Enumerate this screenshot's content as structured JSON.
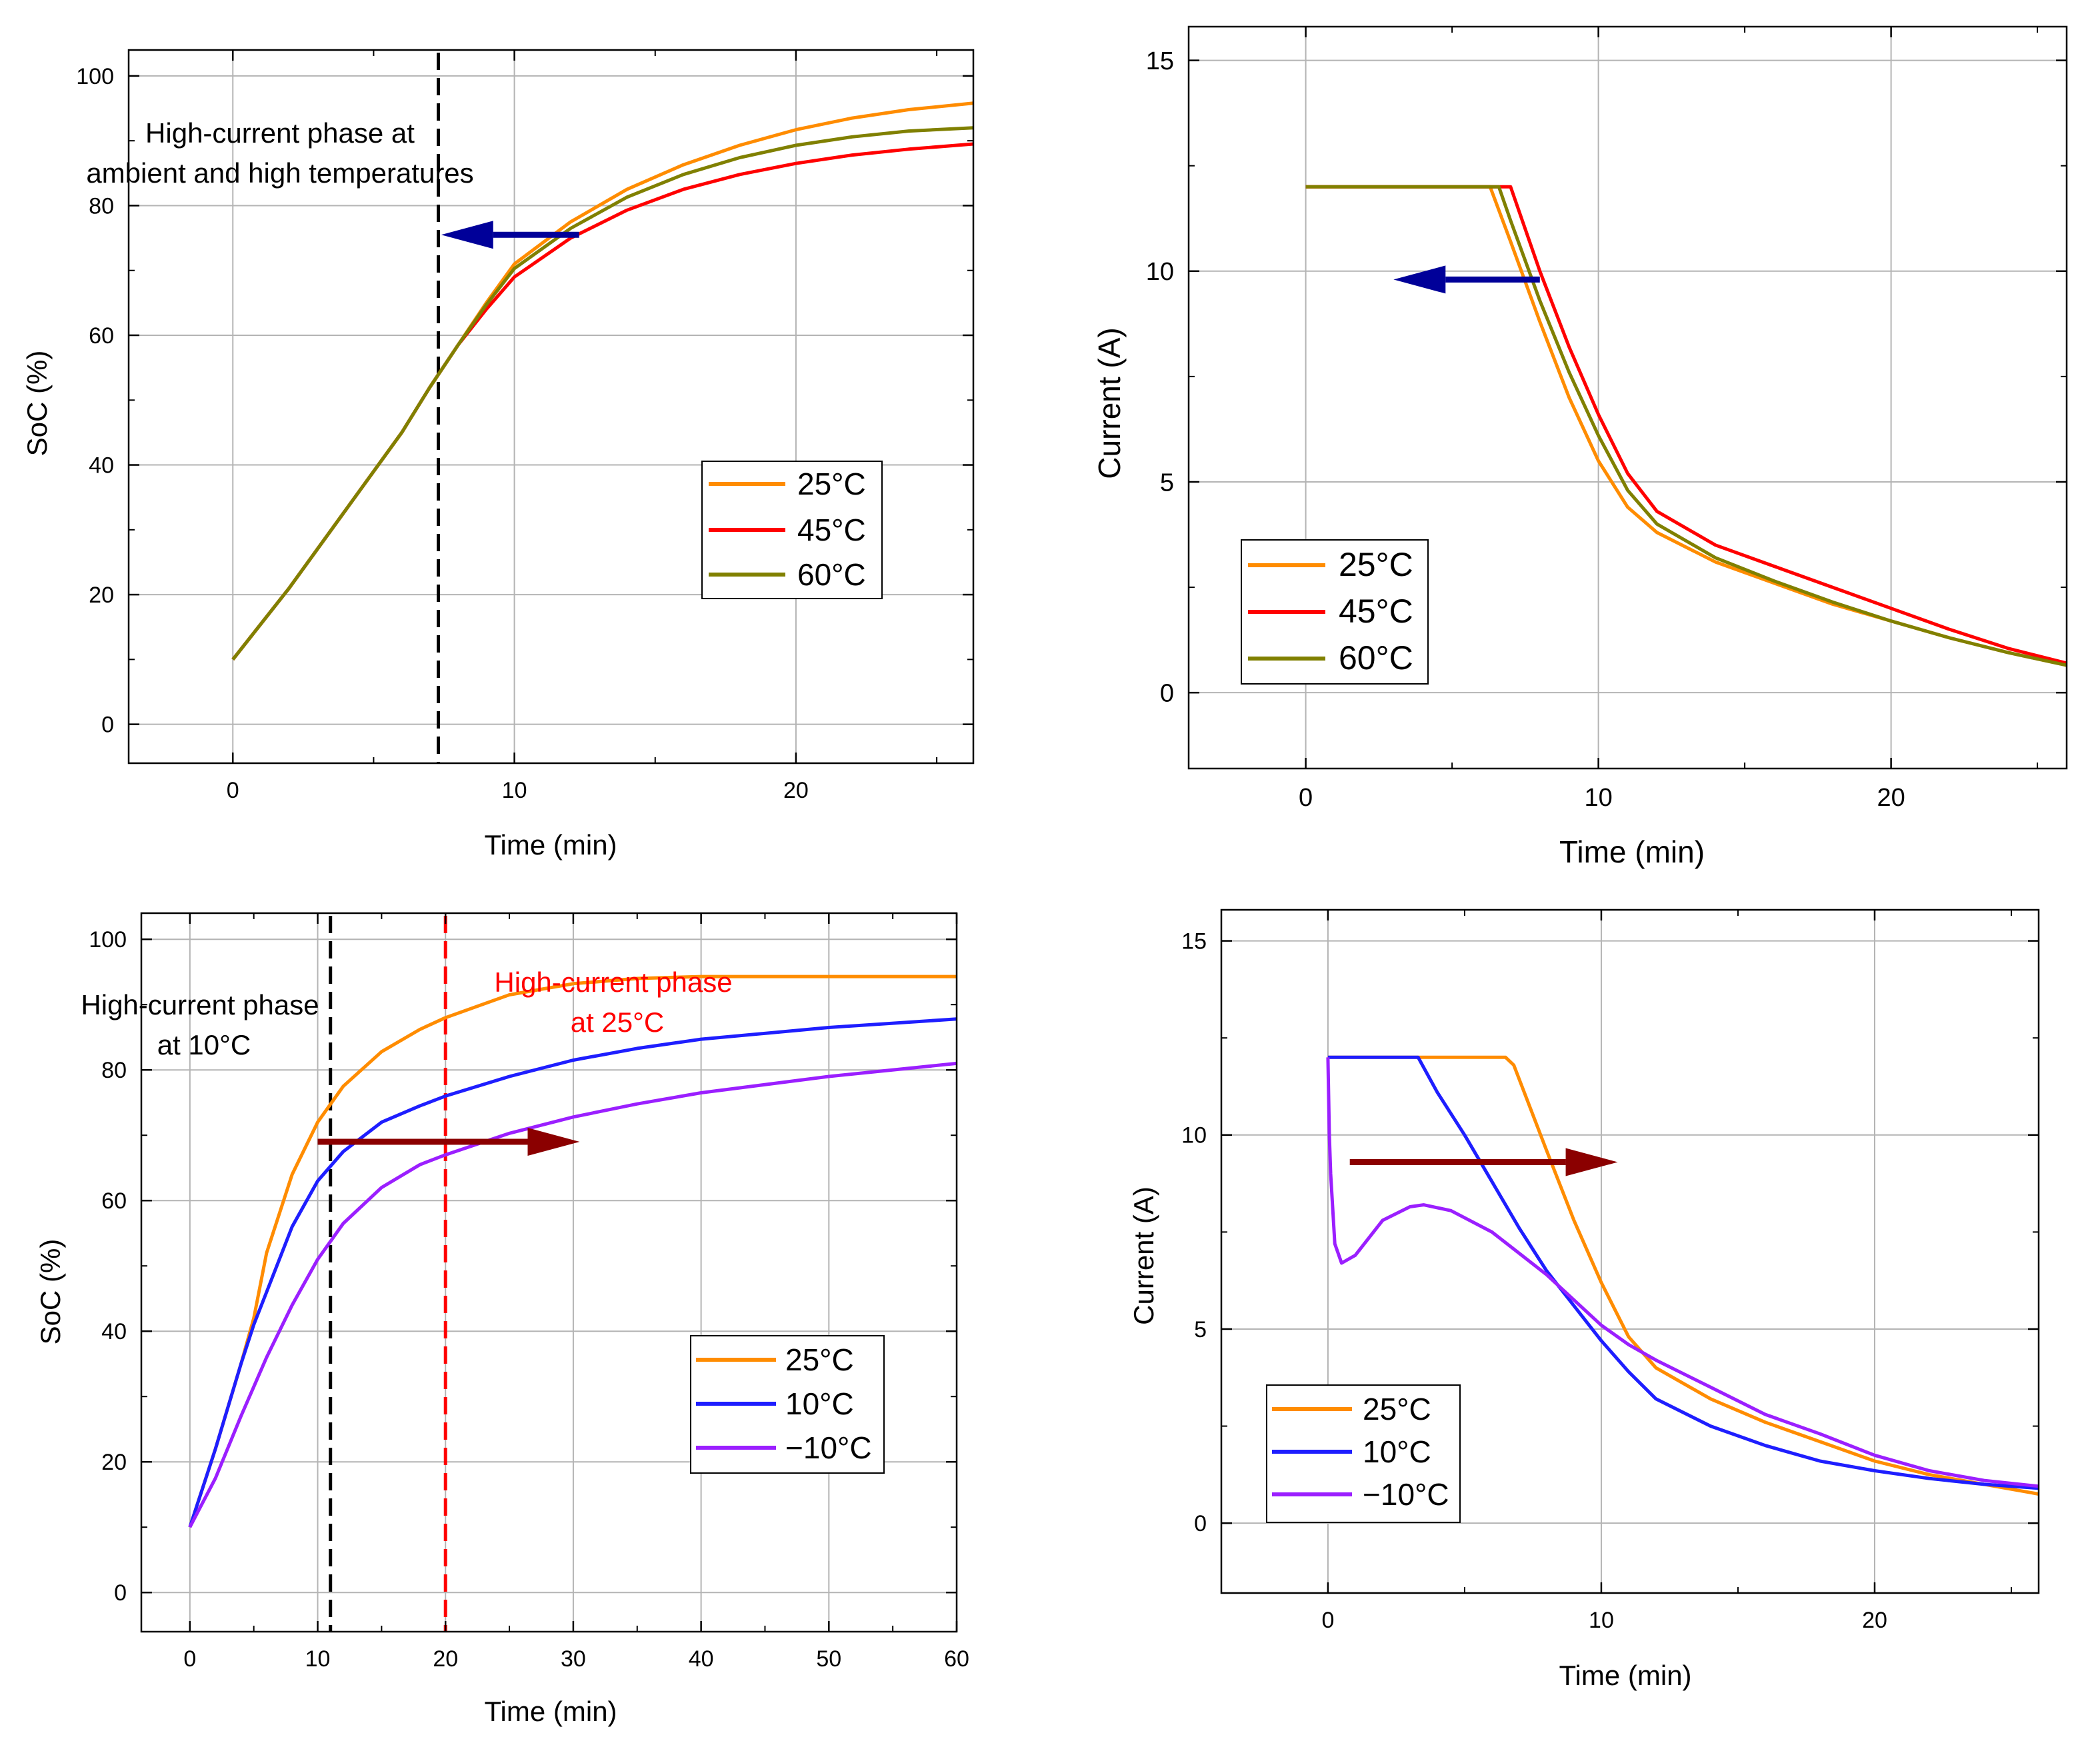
{
  "colors": {
    "c25": "#ff8c00",
    "c45": "#ff0000",
    "c60": "#808000",
    "c10": "#1e1eff",
    "cm10": "#9b1fff",
    "blue_arrow": "#000099",
    "dark_red_arrow": "#8b0000",
    "grid": "#b4b4b4",
    "black_dash": "#000000",
    "red_dash": "#ff0000"
  },
  "chart_data": [
    {
      "id": "top-left",
      "type": "line",
      "xlabel": "Time (min)",
      "ylabel": "SoC (%)",
      "xlim": [
        -3.7,
        26.3
      ],
      "ylim": [
        -6,
        104
      ],
      "xticks": [
        0,
        10,
        20
      ],
      "yticks": [
        0,
        20,
        40,
        60,
        80,
        100
      ],
      "grid": true,
      "legend_position": "center-right",
      "series": [
        {
          "name": "25°C",
          "color_key": "c25",
          "x": [
            0,
            2,
            4,
            6,
            7,
            8,
            9,
            10,
            12,
            14,
            16,
            18,
            20,
            22,
            24,
            26.3
          ],
          "y": [
            10,
            21,
            33,
            45,
            52,
            58.5,
            65,
            71,
            77.5,
            82.5,
            86.3,
            89.3,
            91.7,
            93.5,
            94.8,
            95.8
          ]
        },
        {
          "name": "45°C",
          "color_key": "c45",
          "x": [
            0,
            2,
            4,
            6,
            7,
            8,
            9,
            10,
            12,
            14,
            16,
            18,
            20,
            22,
            24,
            26.3
          ],
          "y": [
            10,
            21,
            33,
            45,
            52,
            58.5,
            64,
            69,
            75,
            79.3,
            82.5,
            84.8,
            86.5,
            87.8,
            88.7,
            89.5
          ]
        },
        {
          "name": "60°C",
          "color_key": "c60",
          "x": [
            0,
            2,
            4,
            6,
            7,
            8,
            9,
            10,
            12,
            14,
            16,
            18,
            20,
            22,
            24,
            26.3
          ],
          "y": [
            10,
            21,
            33,
            45,
            52,
            58.5,
            64.7,
            70.3,
            76.5,
            81.3,
            84.8,
            87.4,
            89.3,
            90.6,
            91.5,
            92.0
          ]
        }
      ],
      "annotations": [
        {
          "text_lines": [
            "High-current phase at",
            "ambient and high temperatures"
          ]
        }
      ],
      "vlines": [
        {
          "x": 7.3,
          "color_key": "black_dash"
        }
      ],
      "arrows": [
        {
          "from": [
            12.3,
            75.5
          ],
          "to": [
            7.4,
            75.5
          ],
          "color_key": "blue_arrow"
        }
      ]
    },
    {
      "id": "top-right",
      "type": "line",
      "xlabel": "Time (min)",
      "ylabel": "Current (A)",
      "xlim": [
        -4,
        26
      ],
      "ylim": [
        -1.8,
        15.8
      ],
      "xticks": [
        0,
        10,
        20
      ],
      "yticks": [
        0,
        5,
        10,
        15
      ],
      "grid": true,
      "legend_position": "lower-left",
      "series": [
        {
          "name": "25°C",
          "color_key": "c25",
          "x": [
            0,
            6.3,
            7,
            8,
            9,
            10,
            11,
            12,
            14,
            16,
            18,
            20,
            22,
            24,
            26
          ],
          "y": [
            12,
            12,
            10.7,
            8.8,
            7,
            5.5,
            4.4,
            3.8,
            3.1,
            2.6,
            2.1,
            1.7,
            1.3,
            0.95,
            0.65
          ]
        },
        {
          "name": "45°C",
          "color_key": "c45",
          "x": [
            0,
            7,
            8,
            9,
            10,
            11,
            12,
            14,
            16,
            18,
            20,
            22,
            24,
            26
          ],
          "y": [
            12,
            12,
            10,
            8.2,
            6.6,
            5.2,
            4.3,
            3.5,
            3.0,
            2.5,
            2.0,
            1.5,
            1.05,
            0.7
          ]
        },
        {
          "name": "60°C",
          "color_key": "c60",
          "x": [
            0,
            6.6,
            7,
            8,
            9,
            10,
            11,
            12,
            14,
            16,
            18,
            20,
            22,
            24,
            26
          ],
          "y": [
            12,
            12,
            11.2,
            9.3,
            7.6,
            6.1,
            4.8,
            4.0,
            3.2,
            2.65,
            2.15,
            1.7,
            1.3,
            0.95,
            0.65
          ]
        }
      ],
      "annotations": [],
      "vlines": [],
      "arrows": [
        {
          "from": [
            8,
            9.8
          ],
          "to": [
            3,
            9.8
          ],
          "color_key": "blue_arrow"
        }
      ]
    },
    {
      "id": "bottom-left",
      "type": "line",
      "xlabel": "Time (min)",
      "ylabel": "SoC (%)",
      "xlim": [
        -3.8,
        60
      ],
      "ylim": [
        -6,
        104
      ],
      "xticks": [
        0,
        10,
        20,
        30,
        40,
        50,
        60
      ],
      "yticks": [
        0,
        20,
        40,
        60,
        80,
        100
      ],
      "grid": true,
      "legend_position": "lower-right",
      "series": [
        {
          "name": "25°C",
          "color_key": "c25",
          "x": [
            0,
            2,
            4,
            5,
            6,
            8,
            10,
            12,
            15,
            18,
            20,
            25,
            30,
            35,
            40,
            50,
            60
          ],
          "y": [
            10,
            22,
            35,
            42,
            52,
            64,
            72,
            77.5,
            82.8,
            86.2,
            88,
            91.5,
            93.2,
            94,
            94.3,
            94.3,
            94.3
          ]
        },
        {
          "name": "10°C",
          "color_key": "c10",
          "x": [
            0,
            2,
            4,
            5,
            6,
            8,
            10,
            12,
            15,
            18,
            20,
            25,
            30,
            35,
            40,
            50,
            60
          ],
          "y": [
            10,
            22,
            35,
            41,
            46,
            56,
            63,
            67.5,
            72,
            74.5,
            76,
            79,
            81.5,
            83.3,
            84.7,
            86.5,
            87.8
          ]
        },
        {
          "name": "−10°C",
          "color_key": "cm10",
          "x": [
            0,
            2,
            4,
            6,
            8,
            10,
            12,
            15,
            18,
            20,
            25,
            30,
            35,
            40,
            50,
            60
          ],
          "y": [
            10,
            17.5,
            27,
            36,
            44,
            51,
            56.5,
            62,
            65.5,
            67,
            70.3,
            72.8,
            74.8,
            76.5,
            79,
            81
          ]
        }
      ],
      "annotations": [
        {
          "text_lines": [
            "High-current phase",
            "at 10°C"
          ],
          "color_key": "black_dash"
        },
        {
          "text_lines": [
            "High-current phase",
            "at 25°C"
          ],
          "color_key": "red_dash"
        }
      ],
      "vlines": [
        {
          "x": 11,
          "color_key": "black_dash"
        },
        {
          "x": 20,
          "color_key": "red_dash"
        }
      ],
      "arrows": [
        {
          "from": [
            10,
            69
          ],
          "to": [
            30.5,
            69
          ],
          "color_key": "dark_red_arrow"
        }
      ]
    },
    {
      "id": "bottom-right",
      "type": "line",
      "xlabel": "Time (min)",
      "ylabel": "Current (A)",
      "xlim": [
        -3.9,
        26
      ],
      "ylim": [
        -1.8,
        15.8
      ],
      "xticks": [
        0,
        10,
        20
      ],
      "yticks": [
        0,
        5,
        10,
        15
      ],
      "grid": true,
      "legend_position": "lower-left",
      "series": [
        {
          "name": "25°C",
          "color_key": "c25",
          "x": [
            0,
            6.5,
            6.8,
            8,
            9,
            10,
            11,
            12,
            14,
            16,
            18,
            20,
            22,
            24,
            26
          ],
          "y": [
            12,
            12,
            11.8,
            9.6,
            7.8,
            6.2,
            4.8,
            4.0,
            3.2,
            2.6,
            2.1,
            1.6,
            1.25,
            1.0,
            0.75
          ]
        },
        {
          "name": "10°C",
          "color_key": "c10",
          "x": [
            0,
            3.3,
            4,
            5,
            6,
            7,
            8,
            9,
            10,
            11,
            12,
            14,
            16,
            18,
            20,
            22,
            24,
            26
          ],
          "y": [
            12,
            12,
            11.1,
            10.0,
            8.8,
            7.6,
            6.5,
            5.6,
            4.7,
            3.9,
            3.2,
            2.5,
            2.0,
            1.6,
            1.35,
            1.15,
            1.0,
            0.9
          ]
        },
        {
          "name": "−10°C",
          "color_key": "cm10",
          "x": [
            0,
            0.05,
            0.1,
            0.25,
            0.5,
            1,
            2,
            3,
            3.5,
            4.5,
            6,
            8,
            10,
            11,
            12,
            14,
            16,
            18,
            20,
            22,
            24,
            26
          ],
          "y": [
            12,
            10,
            9,
            7.2,
            6.7,
            6.9,
            7.8,
            8.15,
            8.2,
            8.05,
            7.5,
            6.4,
            5.1,
            4.6,
            4.2,
            3.5,
            2.8,
            2.3,
            1.75,
            1.35,
            1.1,
            0.95
          ]
        }
      ],
      "annotations": [],
      "vlines": [],
      "arrows": [
        {
          "from": [
            0.8,
            9.3
          ],
          "to": [
            10.6,
            9.3
          ],
          "color_key": "dark_red_arrow"
        }
      ]
    }
  ]
}
